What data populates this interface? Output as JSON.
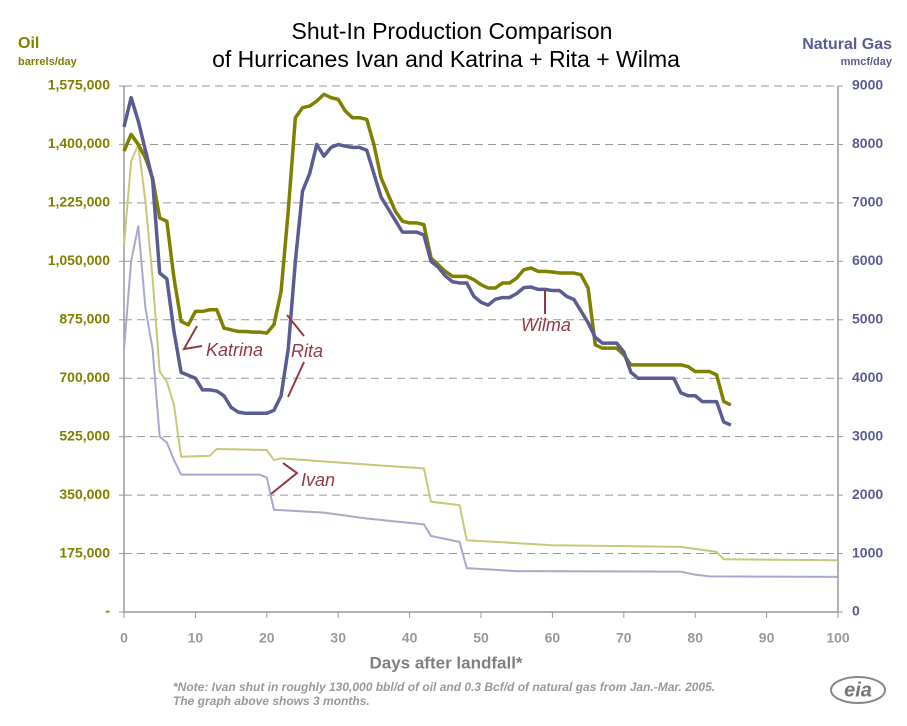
{
  "chart_data": {
    "type": "line",
    "title": [
      "Shut-In Production Comparison",
      "of Hurricanes Ivan and Katrina + Rita + Wilma"
    ],
    "y_label": [
      "Oil",
      "barrels/day"
    ],
    "y2_label": [
      "Natural Gas",
      "mmcf/day"
    ],
    "x_label": "Days after landfall*",
    "note": [
      "*Note: Ivan shut in roughly 130,000 bbl/d of oil and 0.3 Bcf/d of natural gas from Jan.-Mar. 2005.",
      "The graph above shows 3 months."
    ],
    "logo": "eia",
    "annotations": [
      "Katrina",
      "Rita",
      "Wilma",
      "Ivan"
    ],
    "xlim": [
      0,
      100
    ],
    "xticks": [
      0,
      10,
      20,
      30,
      40,
      50,
      60,
      70,
      80,
      90,
      100
    ],
    "ylim": [
      0,
      1575000
    ],
    "yticks": [
      {
        "value": 0,
        "label": "-"
      },
      {
        "value": 175000,
        "label": "175,000"
      },
      {
        "value": 350000,
        "label": "350,000"
      },
      {
        "value": 525000,
        "label": "525,000"
      },
      {
        "value": 700000,
        "label": "700,000"
      },
      {
        "value": 875000,
        "label": "875,000"
      },
      {
        "value": 1050000,
        "label": "1,050,000"
      },
      {
        "value": 1225000,
        "label": "1,225,000"
      },
      {
        "value": 1400000,
        "label": "1,400,000"
      },
      {
        "value": 1575000,
        "label": "1,575,000"
      }
    ],
    "y2lim": [
      0,
      9000
    ],
    "y2ticks": [
      0,
      1000,
      2000,
      3000,
      4000,
      5000,
      6000,
      7000,
      8000,
      9000
    ],
    "grid": true,
    "series": [
      {
        "color": "#c8c878",
        "width": 2,
        "x": [
          0,
          1,
          2,
          3,
          4,
          5,
          6,
          7,
          8,
          12,
          13,
          20,
          21,
          22,
          35,
          42,
          43,
          47,
          48,
          60,
          78,
          83,
          84,
          100
        ],
        "values": [
          1100000,
          1350000,
          1400000,
          1230000,
          1000000,
          720000,
          690000,
          620000,
          465000,
          468000,
          488000,
          485000,
          455000,
          460000,
          440000,
          430000,
          330000,
          320000,
          215000,
          200000,
          195000,
          180000,
          158000,
          155000
        ]
      },
      {
        "color": "#a8a8cc",
        "width": 2,
        "axis": "y2",
        "x": [
          0,
          1,
          2,
          3,
          4,
          5,
          6,
          7,
          8,
          19,
          20,
          21,
          28,
          34,
          42,
          43,
          47,
          48,
          55,
          78,
          80,
          82,
          100
        ],
        "values": [
          4500,
          6000,
          6600,
          5200,
          4500,
          3000,
          2900,
          2600,
          2350,
          2350,
          2300,
          1750,
          1700,
          1600,
          1500,
          1300,
          1200,
          750,
          700,
          690,
          640,
          610,
          600
        ]
      },
      {
        "color": "#808000",
        "width": 3.5,
        "x": [
          0,
          1,
          2,
          3,
          4,
          5,
          6,
          7,
          8,
          9,
          10,
          11,
          12,
          13,
          14,
          15,
          16,
          17,
          18,
          19,
          20,
          21,
          22,
          23,
          24,
          25,
          26,
          27,
          28,
          29,
          30,
          31,
          32,
          33,
          34,
          35,
          36,
          37,
          38,
          39,
          40,
          41,
          42,
          43,
          44,
          45,
          46,
          47,
          48,
          49,
          50,
          51,
          52,
          53,
          54,
          55,
          56,
          57,
          58,
          59,
          60,
          61,
          62,
          63,
          64,
          65,
          66,
          67,
          68,
          69,
          70,
          71,
          72,
          73,
          74,
          75,
          76,
          77,
          78,
          79,
          80,
          81,
          82,
          83,
          84,
          85
        ],
        "values": [
          1380000,
          1430000,
          1400000,
          1360000,
          1300000,
          1180000,
          1170000,
          1000000,
          870000,
          860000,
          900000,
          900000,
          905000,
          905000,
          850000,
          845000,
          840000,
          840000,
          838000,
          838000,
          835000,
          860000,
          960000,
          1200000,
          1480000,
          1510000,
          1515000,
          1530000,
          1550000,
          1540000,
          1535000,
          1500000,
          1480000,
          1480000,
          1475000,
          1400000,
          1300000,
          1250000,
          1200000,
          1170000,
          1165000,
          1165000,
          1160000,
          1060000,
          1040000,
          1020000,
          1005000,
          1005000,
          1005000,
          995000,
          980000,
          970000,
          970000,
          985000,
          985000,
          1000000,
          1025000,
          1030000,
          1020000,
          1020000,
          1018000,
          1015000,
          1015000,
          1015000,
          1010000,
          970000,
          800000,
          790000,
          790000,
          790000,
          770000,
          740000,
          740000,
          740000,
          740000,
          740000,
          740000,
          740000,
          740000,
          735000,
          720000,
          720000,
          720000,
          710000,
          630000,
          620000
        ]
      },
      {
        "color": "#5c5c94",
        "width": 3.5,
        "axis": "y2",
        "x": [
          0,
          1,
          2,
          3,
          4,
          5,
          6,
          7,
          8,
          9,
          10,
          11,
          12,
          13,
          14,
          15,
          16,
          17,
          18,
          19,
          20,
          21,
          22,
          23,
          24,
          25,
          26,
          27,
          28,
          29,
          30,
          31,
          32,
          33,
          34,
          35,
          36,
          37,
          38,
          39,
          40,
          41,
          42,
          43,
          44,
          45,
          46,
          47,
          48,
          49,
          50,
          51,
          52,
          53,
          54,
          55,
          56,
          57,
          58,
          59,
          60,
          61,
          62,
          63,
          64,
          65,
          66,
          67,
          68,
          69,
          70,
          71,
          72,
          73,
          74,
          75,
          76,
          77,
          78,
          79,
          80,
          81,
          82,
          83,
          84,
          85
        ],
        "values": [
          8300,
          8800,
          8400,
          7900,
          7400,
          5800,
          5700,
          4800,
          4100,
          4050,
          4000,
          3800,
          3800,
          3780,
          3700,
          3500,
          3420,
          3400,
          3400,
          3400,
          3400,
          3450,
          3700,
          4500,
          6000,
          7200,
          7500,
          8000,
          7800,
          7950,
          8000,
          7970,
          7950,
          7950,
          7900,
          7500,
          7100,
          6900,
          6700,
          6500,
          6500,
          6500,
          6450,
          6000,
          5900,
          5750,
          5650,
          5630,
          5630,
          5400,
          5300,
          5250,
          5350,
          5380,
          5380,
          5450,
          5550,
          5560,
          5520,
          5520,
          5500,
          5500,
          5400,
          5350,
          5150,
          4950,
          4700,
          4600,
          4600,
          4600,
          4450,
          4100,
          4000,
          4000,
          4000,
          4000,
          4000,
          4000,
          3750,
          3700,
          3700,
          3600,
          3600,
          3600,
          3250,
          3200
        ]
      }
    ]
  }
}
